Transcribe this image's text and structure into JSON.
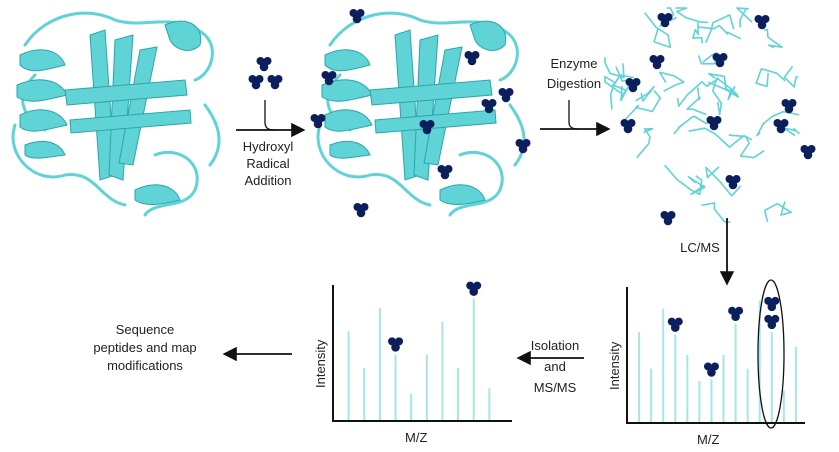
{
  "labels": {
    "hydroxyl": [
      "Hydroxyl",
      "Radical",
      "Addition"
    ],
    "enzyme": [
      "Enzyme",
      "Digestion"
    ],
    "lcms": "LC/MS",
    "isolation": [
      "Isolation",
      "and",
      "MS/MS"
    ],
    "sequence": [
      "Sequence",
      "peptides and map",
      "modifications"
    ],
    "spectrum_left": {
      "xlabel": "M/Z",
      "ylabel": "Intensity"
    },
    "spectrum_right": {
      "xlabel": "M/Z",
      "ylabel": "Intensity"
    }
  },
  "colors": {
    "protein": "#5fd3d6",
    "protein_dark": "#2aa6ab",
    "radical": "#0a1f5c",
    "peak": "#a8e6e6",
    "axis": "#111111"
  },
  "spectra": {
    "left": {
      "peaks": [
        {
          "intensity": 0.66,
          "modified": false
        },
        {
          "intensity": 0.39,
          "modified": false
        },
        {
          "intensity": 0.83,
          "modified": false
        },
        {
          "intensity": 0.49,
          "modified": true
        },
        {
          "intensity": 0.2,
          "modified": false
        },
        {
          "intensity": 0.49,
          "modified": false
        },
        {
          "intensity": 0.73,
          "modified": false
        },
        {
          "intensity": 0.39,
          "modified": false
        },
        {
          "intensity": 0.9,
          "modified": true
        },
        {
          "intensity": 0.24,
          "modified": false
        }
      ]
    },
    "right": {
      "peaks": [
        {
          "intensity": 0.67,
          "modified": false
        },
        {
          "intensity": 0.4,
          "modified": false
        },
        {
          "intensity": 0.84,
          "modified": false
        },
        {
          "intensity": 0.65,
          "modified": true
        },
        {
          "intensity": 0.5,
          "modified": false
        },
        {
          "intensity": 0.31,
          "modified": false
        },
        {
          "intensity": 0.32,
          "modified": true
        },
        {
          "intensity": 0.5,
          "modified": false
        },
        {
          "intensity": 0.73,
          "modified": true
        },
        {
          "intensity": 0.4,
          "modified": false
        },
        {
          "intensity": 0.9,
          "modified": false
        },
        {
          "intensity": 0.67,
          "modified": true,
          "double": true,
          "highlighted": true
        },
        {
          "intensity": 0.24,
          "modified": false
        },
        {
          "intensity": 0.56,
          "modified": false
        }
      ]
    }
  }
}
